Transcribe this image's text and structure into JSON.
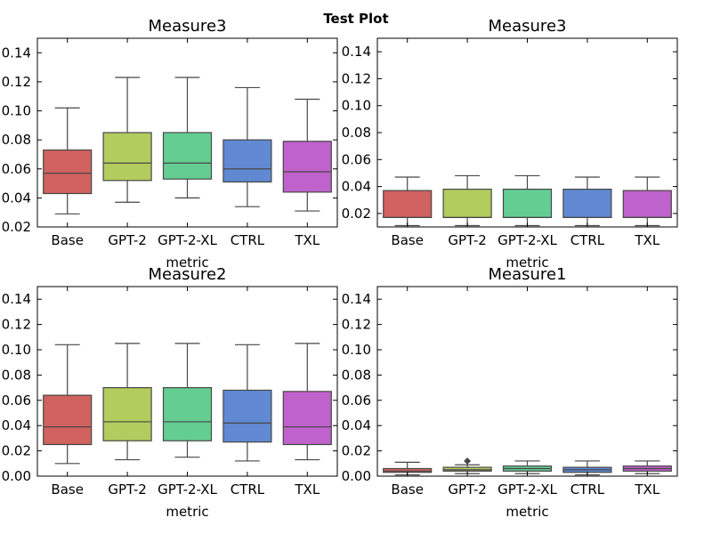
{
  "figure": {
    "title": "Test Plot"
  },
  "colors": {
    "Base": "#d0625f",
    "GPT-2": "#b2cc5e",
    "GPT-2-XL": "#64ce92",
    "CTRL": "#6089d2",
    "TXL": "#bf62cc",
    "whisker": "#474747"
  },
  "chart_data": [
    {
      "type": "box",
      "title": "Measure3",
      "xlabel": "metric",
      "ylabel": "",
      "ylim": [
        0.02,
        0.15
      ],
      "yticks": [
        0.02,
        0.04,
        0.06,
        0.08,
        0.1,
        0.12,
        0.14
      ],
      "ytick_labels": [
        "0.02",
        "0.04",
        "0.06",
        "0.08",
        "0.10",
        "0.12",
        "0.14"
      ],
      "categories": [
        "Base",
        "GPT-2",
        "GPT-2-XL",
        "CTRL",
        "TXL"
      ],
      "boxes": [
        {
          "whislo": 0.029,
          "q1": 0.043,
          "med": 0.057,
          "q3": 0.073,
          "whishi": 0.102,
          "fliers": []
        },
        {
          "whislo": 0.037,
          "q1": 0.052,
          "med": 0.064,
          "q3": 0.085,
          "whishi": 0.123,
          "fliers": []
        },
        {
          "whislo": 0.04,
          "q1": 0.053,
          "med": 0.064,
          "q3": 0.085,
          "whishi": 0.123,
          "fliers": []
        },
        {
          "whislo": 0.034,
          "q1": 0.051,
          "med": 0.06,
          "q3": 0.08,
          "whishi": 0.116,
          "fliers": []
        },
        {
          "whislo": 0.031,
          "q1": 0.044,
          "med": 0.058,
          "q3": 0.079,
          "whishi": 0.108,
          "fliers": []
        }
      ]
    },
    {
      "type": "box",
      "title": "Measure3",
      "xlabel": "metric",
      "ylabel": "",
      "ylim": [
        0.01,
        0.15
      ],
      "yticks": [
        0.02,
        0.04,
        0.06,
        0.08,
        0.1,
        0.12,
        0.14
      ],
      "ytick_labels": [
        "0.02",
        "0.04",
        "0.06",
        "0.08",
        "0.10",
        "0.12",
        "0.14"
      ],
      "categories": [
        "Base",
        "GPT-2",
        "GPT-2-XL",
        "CTRL",
        "TXL"
      ],
      "boxes": [
        {
          "whislo": 0.011,
          "q1": 0.017,
          "med": 0.017,
          "q3": 0.037,
          "whishi": 0.047,
          "fliers": []
        },
        {
          "whislo": 0.011,
          "q1": 0.017,
          "med": 0.017,
          "q3": 0.038,
          "whishi": 0.048,
          "fliers": []
        },
        {
          "whislo": 0.011,
          "q1": 0.017,
          "med": 0.017,
          "q3": 0.038,
          "whishi": 0.048,
          "fliers": []
        },
        {
          "whislo": 0.011,
          "q1": 0.017,
          "med": 0.017,
          "q3": 0.038,
          "whishi": 0.047,
          "fliers": []
        },
        {
          "whislo": 0.011,
          "q1": 0.017,
          "med": 0.017,
          "q3": 0.037,
          "whishi": 0.047,
          "fliers": []
        }
      ]
    },
    {
      "type": "box",
      "title": "Measure2",
      "xlabel": "metric",
      "ylabel": "",
      "ylim": [
        0.0,
        0.15
      ],
      "yticks": [
        0.0,
        0.02,
        0.04,
        0.06,
        0.08,
        0.1,
        0.12,
        0.14
      ],
      "ytick_labels": [
        "0.00",
        "0.02",
        "0.04",
        "0.06",
        "0.08",
        "0.10",
        "0.12",
        "0.14"
      ],
      "categories": [
        "Base",
        "GPT-2",
        "GPT-2-XL",
        "CTRL",
        "TXL"
      ],
      "boxes": [
        {
          "whislo": 0.01,
          "q1": 0.025,
          "med": 0.039,
          "q3": 0.064,
          "whishi": 0.104,
          "fliers": []
        },
        {
          "whislo": 0.013,
          "q1": 0.028,
          "med": 0.043,
          "q3": 0.07,
          "whishi": 0.105,
          "fliers": []
        },
        {
          "whislo": 0.015,
          "q1": 0.028,
          "med": 0.043,
          "q3": 0.07,
          "whishi": 0.105,
          "fliers": []
        },
        {
          "whislo": 0.012,
          "q1": 0.027,
          "med": 0.042,
          "q3": 0.068,
          "whishi": 0.104,
          "fliers": []
        },
        {
          "whislo": 0.013,
          "q1": 0.025,
          "med": 0.039,
          "q3": 0.067,
          "whishi": 0.105,
          "fliers": []
        }
      ]
    },
    {
      "type": "box",
      "title": "Measure1",
      "xlabel": "metric",
      "ylabel": "",
      "ylim": [
        0.0,
        0.15
      ],
      "yticks": [
        0.0,
        0.02,
        0.04,
        0.06,
        0.08,
        0.1,
        0.12,
        0.14
      ],
      "ytick_labels": [
        "0.00",
        "0.02",
        "0.04",
        "0.06",
        "0.08",
        "0.10",
        "0.12",
        "0.14"
      ],
      "categories": [
        "Base",
        "GPT-2",
        "GPT-2-XL",
        "CTRL",
        "TXL"
      ],
      "boxes": [
        {
          "whislo": 0.001,
          "q1": 0.003,
          "med": 0.004,
          "q3": 0.006,
          "whishi": 0.011,
          "fliers": []
        },
        {
          "whislo": 0.002,
          "q1": 0.004,
          "med": 0.005,
          "q3": 0.007,
          "whishi": 0.009,
          "fliers": [
            0.012
          ]
        },
        {
          "whislo": 0.002,
          "q1": 0.004,
          "med": 0.006,
          "q3": 0.008,
          "whishi": 0.012,
          "fliers": []
        },
        {
          "whislo": 0.001,
          "q1": 0.003,
          "med": 0.005,
          "q3": 0.007,
          "whishi": 0.012,
          "fliers": []
        },
        {
          "whislo": 0.002,
          "q1": 0.004,
          "med": 0.006,
          "q3": 0.008,
          "whishi": 0.012,
          "fliers": []
        }
      ]
    }
  ]
}
